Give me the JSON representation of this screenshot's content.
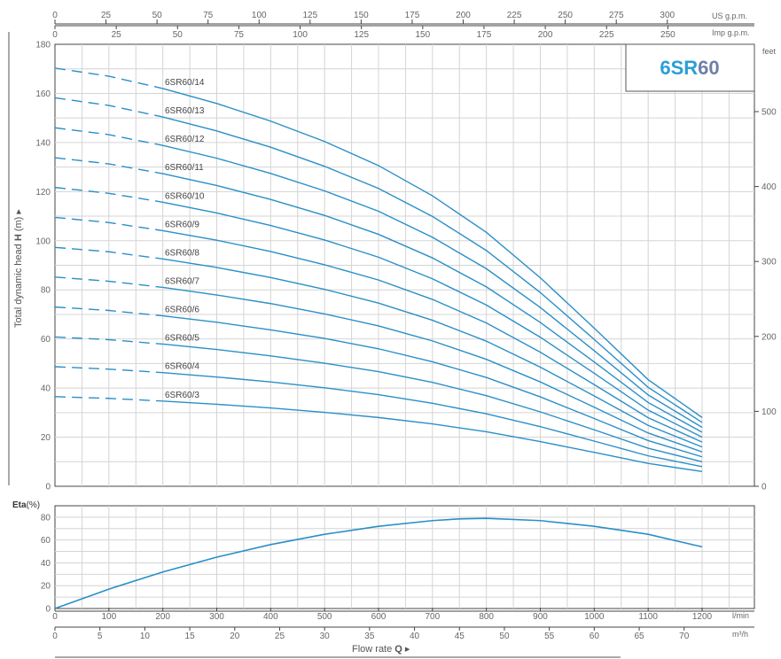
{
  "badge": {
    "prefix": "6SR",
    "suffix": "60",
    "prefix_color": "#2a9fd6",
    "suffix_color": "#6e7fa8"
  },
  "top_axes": {
    "us": {
      "unit": "US g.p.m.",
      "ticks": [
        "0",
        "25",
        "50",
        "75",
        "100",
        "125",
        "150",
        "175",
        "200",
        "225",
        "250",
        "275",
        "300"
      ]
    },
    "imp": {
      "unit": "Imp g.p.m.",
      "ticks": [
        "0",
        "25",
        "50",
        "75",
        "100",
        "125",
        "150",
        "175",
        "200",
        "225",
        "250"
      ]
    }
  },
  "left_axis": {
    "title_pre": "Total dynamic head ",
    "title_var": "H",
    "title_post": " (m) ▸",
    "ticks": [
      "0",
      "20",
      "40",
      "60",
      "80",
      "100",
      "120",
      "140",
      "160",
      "180"
    ]
  },
  "right_axis": {
    "unit": "feet",
    "ticks": [
      "0",
      "100",
      "200",
      "300",
      "400",
      "500"
    ]
  },
  "eta_axis": {
    "label": "Eta",
    "unit": "(%)",
    "ticks": [
      "0",
      "20",
      "40",
      "60",
      "80"
    ]
  },
  "bottom_axes": {
    "lmin": {
      "unit": "l/min",
      "ticks": [
        "0",
        "100",
        "200",
        "300",
        "400",
        "500",
        "600",
        "700",
        "800",
        "900",
        "1000",
        "1100",
        "1200"
      ]
    },
    "m3h": {
      "unit": "m³/h",
      "ticks": [
        "0",
        "5",
        "10",
        "15",
        "20",
        "25",
        "30",
        "35",
        "40",
        "45",
        "50",
        "55",
        "60",
        "65",
        "70"
      ]
    },
    "title_pre": "Flow  rate  ",
    "title_var": "Q",
    "title_post": "  ▸"
  },
  "colors": {
    "curve": "#2a8fc8",
    "grid": "#d4d4d4",
    "axis": "#444444"
  },
  "chart_data": [
    {
      "type": "line",
      "x_unit": "l/min",
      "xlim": [
        0,
        1200
      ],
      "ylim": [
        0,
        180
      ],
      "dashed_until_x": 200,
      "x": [
        0,
        100,
        200,
        300,
        400,
        500,
        600,
        700,
        800,
        900,
        1000,
        1100,
        1200
      ],
      "series": [
        {
          "name": "6SR60/3",
          "values": [
            36.5,
            35.8,
            34.7,
            33.4,
            31.9,
            30.1,
            28.0,
            25.4,
            22.2,
            18.2,
            13.8,
            9.3,
            6.0
          ]
        },
        {
          "name": "6SR60/4",
          "values": [
            48.7,
            47.7,
            46.3,
            44.5,
            42.5,
            40.1,
            37.3,
            33.8,
            29.5,
            24.3,
            18.4,
            12.4,
            8.0
          ]
        },
        {
          "name": "6SR60/5",
          "values": [
            60.8,
            59.7,
            57.9,
            55.7,
            53.1,
            50.1,
            46.7,
            42.3,
            36.9,
            30.3,
            23.0,
            15.5,
            10.0
          ]
        },
        {
          "name": "6SR60/6",
          "values": [
            73.0,
            71.6,
            69.4,
            66.8,
            63.7,
            60.2,
            56.0,
            50.7,
            44.3,
            36.4,
            27.6,
            18.6,
            12.0
          ]
        },
        {
          "name": "6SR60/7",
          "values": [
            85.2,
            83.5,
            81.0,
            77.9,
            74.4,
            70.2,
            65.3,
            59.2,
            51.7,
            42.5,
            32.2,
            21.7,
            14.0
          ]
        },
        {
          "name": "6SR60/8",
          "values": [
            97.3,
            95.5,
            92.6,
            89.1,
            85.0,
            80.2,
            74.6,
            67.6,
            59.1,
            48.5,
            36.8,
            24.8,
            16.0
          ]
        },
        {
          "name": "6SR60/9",
          "values": [
            109.5,
            107.4,
            104.1,
            100.2,
            95.6,
            90.2,
            84.0,
            76.1,
            66.5,
            54.6,
            41.4,
            27.9,
            18.0
          ]
        },
        {
          "name": "6SR60/10",
          "values": [
            121.7,
            119.3,
            115.7,
            111.3,
            106.2,
            100.3,
            93.3,
            84.5,
            73.8,
            60.7,
            46.0,
            31.0,
            20.0
          ]
        },
        {
          "name": "6SR60/11",
          "values": [
            133.8,
            131.3,
            127.3,
            122.5,
            116.8,
            110.3,
            102.6,
            93.0,
            81.2,
            66.7,
            50.6,
            34.1,
            22.0
          ]
        },
        {
          "name": "6SR60/12",
          "values": [
            146.0,
            143.2,
            138.8,
            133.6,
            127.4,
            120.3,
            112.0,
            101.4,
            88.6,
            72.8,
            55.2,
            37.2,
            24.0
          ]
        },
        {
          "name": "6SR60/13",
          "values": [
            158.2,
            155.1,
            150.4,
            144.7,
            138.1,
            130.3,
            121.3,
            109.9,
            96.0,
            78.9,
            59.8,
            40.3,
            26.0
          ]
        },
        {
          "name": "6SR60/14",
          "values": [
            170.3,
            167.0,
            162.0,
            155.9,
            148.7,
            140.4,
            130.6,
            118.3,
            103.4,
            84.9,
            64.4,
            43.4,
            28.0
          ]
        }
      ]
    },
    {
      "type": "line",
      "x_unit": "l/min",
      "xlim": [
        0,
        1200
      ],
      "ylim": [
        0,
        90
      ],
      "x": [
        0,
        100,
        200,
        300,
        400,
        500,
        600,
        700,
        750,
        800,
        900,
        1000,
        1100,
        1200
      ],
      "series": [
        {
          "values": [
            0,
            17,
            32,
            45,
            56,
            65,
            72,
            77,
            78.5,
            79,
            77,
            72,
            65,
            54
          ]
        }
      ]
    }
  ]
}
